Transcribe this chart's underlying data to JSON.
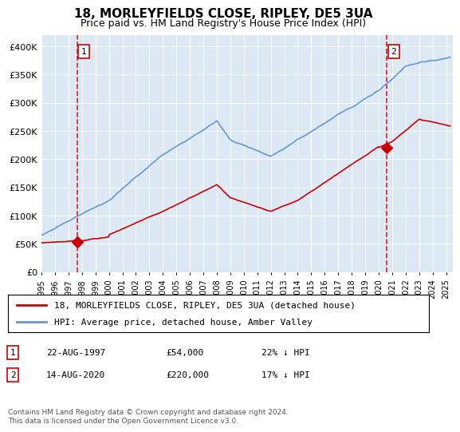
{
  "title": "18, MORLEYFIELDS CLOSE, RIPLEY, DE5 3UA",
  "subtitle": "Price paid vs. HM Land Registry's House Price Index (HPI)",
  "background_color": "#dce9f5",
  "plot_bg_color": "#dce9f5",
  "red_line_color": "#cc0000",
  "blue_line_color": "#6699cc",
  "ylim": [
    0,
    420000
  ],
  "yticks": [
    0,
    50000,
    100000,
    150000,
    200000,
    250000,
    300000,
    350000,
    400000
  ],
  "ytick_labels": [
    "£0",
    "£50K",
    "£100K",
    "£150K",
    "£200K",
    "£250K",
    "£300K",
    "£350K",
    "£400K"
  ],
  "sale1_year": 1997.64,
  "sale1_price": 54000,
  "sale1_label": "1",
  "sale2_year": 2020.62,
  "sale2_price": 220000,
  "sale2_label": "2",
  "legend_red": "18, MORLEYFIELDS CLOSE, RIPLEY, DE5 3UA (detached house)",
  "legend_blue": "HPI: Average price, detached house, Amber Valley",
  "table_row1": [
    "1",
    "22-AUG-1997",
    "£54,000",
    "22% ↓ HPI"
  ],
  "table_row2": [
    "2",
    "14-AUG-2020",
    "£220,000",
    "17% ↓ HPI"
  ],
  "footnote": "Contains HM Land Registry data © Crown copyright and database right 2024.\nThis data is licensed under the Open Government Licence v3.0.",
  "xmin": 1995,
  "xmax": 2025.5
}
